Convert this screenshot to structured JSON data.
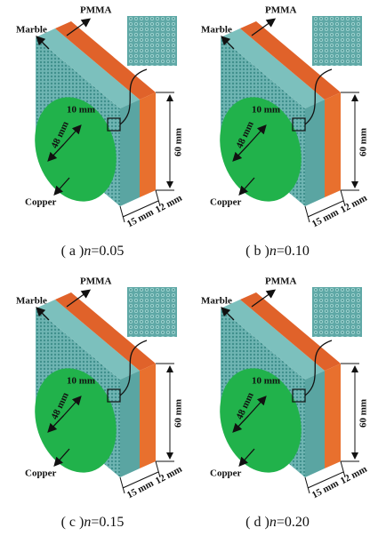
{
  "panels": [
    {
      "labels": {
        "pmma": "PMMA",
        "marble": "Marble",
        "copper": "Copper",
        "inner": "10 mm",
        "diameter": "48 mm",
        "height": "60 mm",
        "marble_thickness": "15 mm",
        "pmma_thickness": "12 mm"
      },
      "caption": {
        "label": "( a )",
        "param": "n",
        "value": "=0.05"
      }
    },
    {
      "labels": {
        "pmma": "PMMA",
        "marble": "Marble",
        "copper": "Copper",
        "inner": "10 mm",
        "diameter": "48 mm",
        "height": "60 mm",
        "marble_thickness": "15 mm",
        "pmma_thickness": "12 mm"
      },
      "caption": {
        "label": "( b )",
        "param": "n",
        "value": "=0.10"
      }
    },
    {
      "labels": {
        "pmma": "PMMA",
        "marble": "Marble",
        "copper": "Copper",
        "inner": "10 mm",
        "diameter": "48 mm",
        "height": "60 mm",
        "marble_thickness": "15 mm",
        "pmma_thickness": "12 mm"
      },
      "caption": {
        "label": "( c )",
        "param": "n",
        "value": "=0.15"
      }
    },
    {
      "labels": {
        "pmma": "PMMA",
        "marble": "Marble",
        "copper": "Copper",
        "inner": "10 mm",
        "diameter": "48 mm",
        "height": "60 mm",
        "marble_thickness": "15 mm",
        "pmma_thickness": "12 mm"
      },
      "caption": {
        "label": "( d )",
        "param": "n",
        "value": "=0.20"
      }
    }
  ]
}
